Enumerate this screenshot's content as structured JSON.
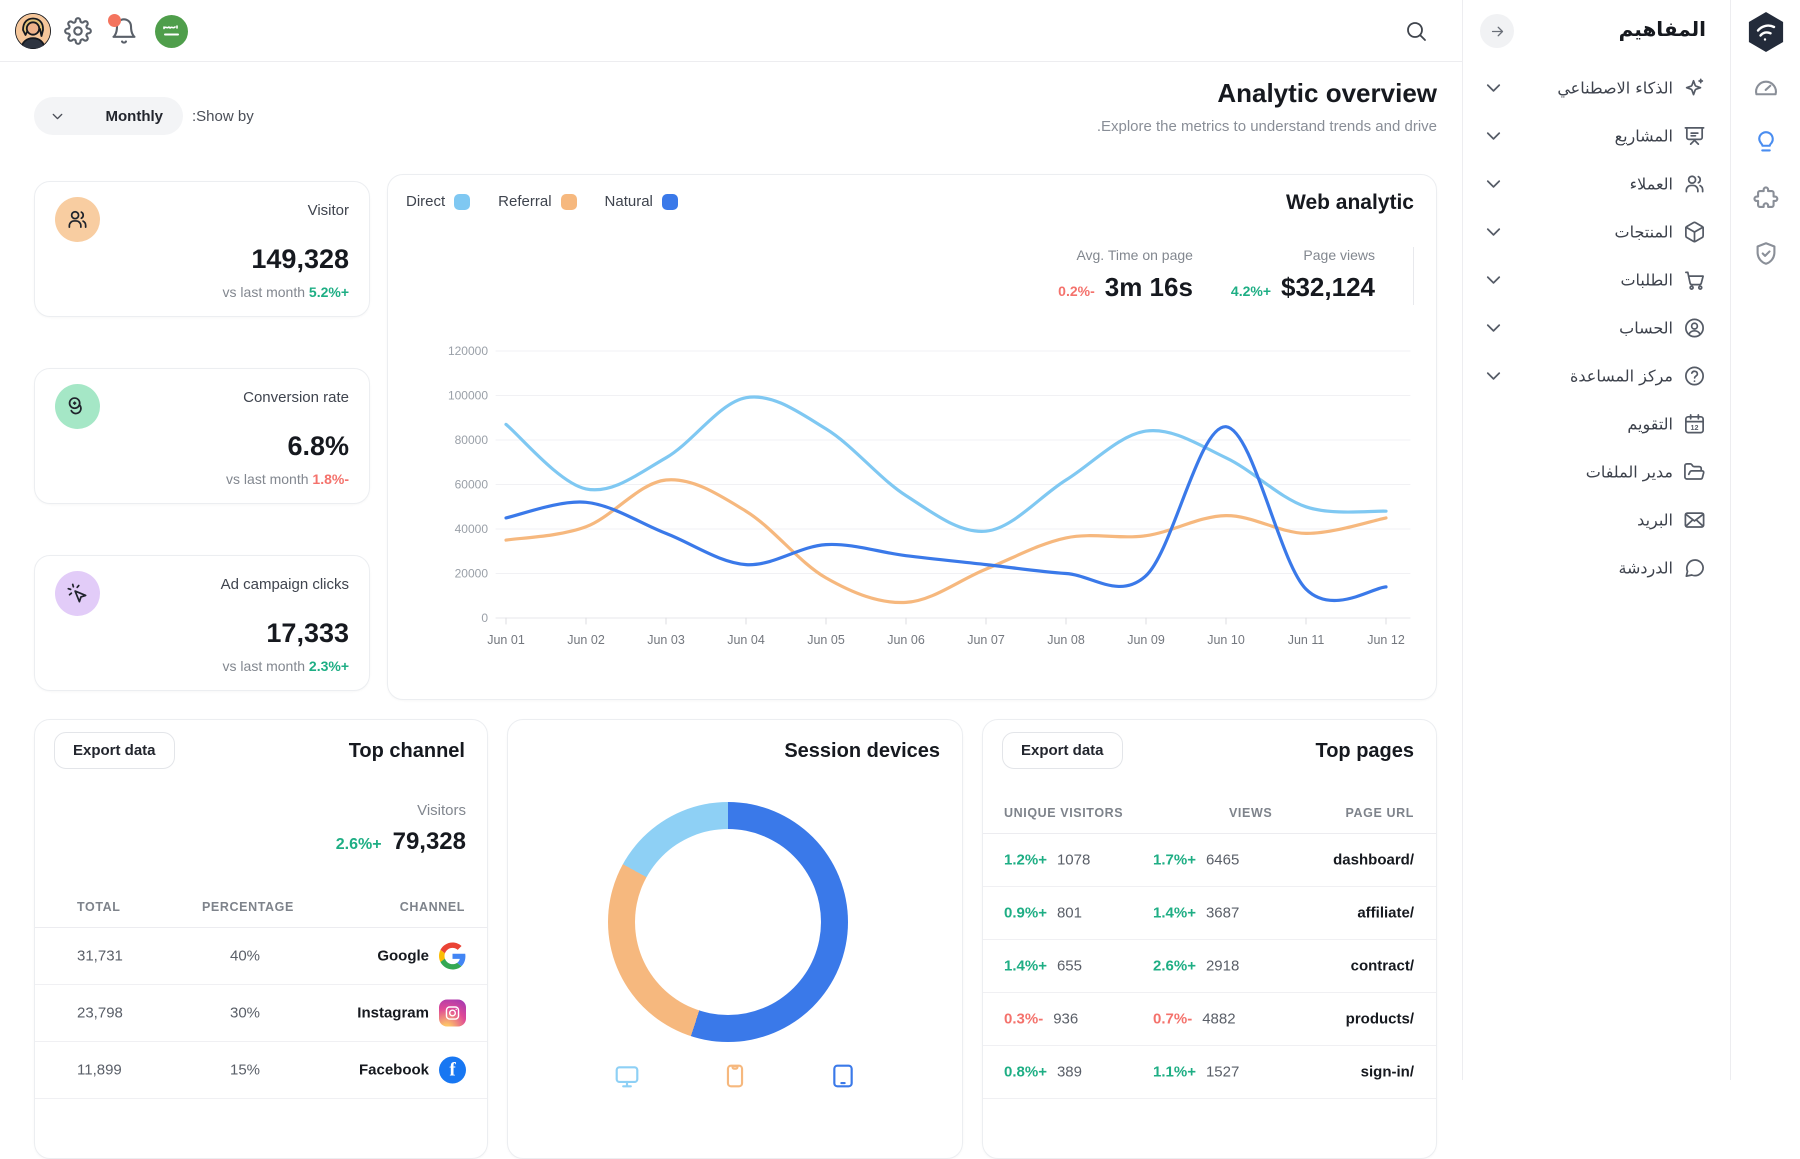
{
  "colors": {
    "direct": "#7fc8f2",
    "referral": "#f6b87e",
    "natural": "#3a79e9",
    "green": "#1eae84",
    "red": "#f4726c",
    "border": "#ececf0",
    "stat_icon_bgs": [
      "#f8cda1",
      "#a5e7c6",
      "#e2ccf8"
    ],
    "active_rail": "#4a8df0",
    "facebook": "#1877f2",
    "flag_badge": "#4f9e4b",
    "notification_dot": "#f4745e"
  },
  "page_header": {
    "title": "Analytic overview",
    "subtitle": ".Explore the metrics to understand trends and drive",
    "show_by_label": ":Show by",
    "period": "Monthly"
  },
  "stats": [
    {
      "title": "Visitor",
      "value": "149,328",
      "note": "vs last month",
      "delta": "5.2%+",
      "delta_dir": "up",
      "icon": "users",
      "icon_bg": "#f8cda1"
    },
    {
      "title": "Conversion rate",
      "value": "6.8%",
      "note": "vs last month",
      "delta": "1.8%-",
      "delta_dir": "down",
      "icon": "coins",
      "icon_bg": "#a5e7c6"
    },
    {
      "title": "Ad campaign clicks",
      "value": "17,333",
      "note": "vs last month",
      "delta": "2.3%+",
      "delta_dir": "up",
      "icon": "cursor-click",
      "icon_bg": "#e2ccf8"
    }
  ],
  "web_analytic": {
    "title": "Web analytic",
    "legend": [
      {
        "label": "Direct",
        "color": "#7fc8f2"
      },
      {
        "label": "Referral",
        "color": "#f6b87e"
      },
      {
        "label": "Natural",
        "color": "#3a79e9"
      }
    ],
    "metrics": [
      {
        "label": "Avg. Time on page",
        "value": "3m 16s",
        "delta": "0.2%-",
        "delta_dir": "down"
      },
      {
        "label": "Page views",
        "value": "$32,124",
        "delta": "4.2%+",
        "delta_dir": "up"
      }
    ]
  },
  "chart_data": [
    {
      "type": "line",
      "title": "Web analytic",
      "x": [
        "Jun 01",
        "Jun 02",
        "Jun 03",
        "Jun 04",
        "Jun 05",
        "Jun 06",
        "Jun 07",
        "Jun 08",
        "Jun 09",
        "Jun 10",
        "Jun 11",
        "Jun 12"
      ],
      "series": [
        {
          "name": "Direct",
          "color": "#7fc8f2",
          "values": [
            87000,
            58000,
            72000,
            99000,
            85000,
            55000,
            39000,
            62000,
            84000,
            72000,
            50000,
            48000
          ]
        },
        {
          "name": "Referral",
          "color": "#f6b87e",
          "values": [
            35000,
            41000,
            62000,
            48000,
            18000,
            7000,
            22000,
            36000,
            37000,
            46000,
            38000,
            45000
          ]
        },
        {
          "name": "Natural",
          "color": "#3a79e9",
          "values": [
            45000,
            52000,
            38000,
            24000,
            33000,
            28000,
            24000,
            20000,
            19000,
            86000,
            13000,
            14000
          ]
        }
      ],
      "ylim": [
        0,
        120000
      ],
      "yticks": [
        0,
        20000,
        40000,
        60000,
        80000,
        100000,
        120000
      ],
      "grid": true,
      "legend_position": "top-left"
    },
    {
      "type": "donut",
      "title": "Session devices",
      "slices": [
        {
          "color": "#3a79e9",
          "value": 55
        },
        {
          "color": "#f6b87e",
          "value": 28
        },
        {
          "color": "#8ed0f5",
          "value": 17
        }
      ]
    }
  ],
  "top_channel": {
    "title": "Top channel",
    "export_label": "Export data",
    "visitors_label": "Visitors",
    "visitors_delta": "2.6%+",
    "visitors_delta_dir": "up",
    "visitors_value": "79,328",
    "headers": [
      "TOTAL",
      "PERCENTAGE",
      "CHANNEL"
    ],
    "rows": [
      {
        "total": "31,731",
        "percentage": "40%",
        "channel": "Google",
        "icon": "google"
      },
      {
        "total": "23,798",
        "percentage": "30%",
        "channel": "Instagram",
        "icon": "instagram"
      },
      {
        "total": "11,899",
        "percentage": "15%",
        "channel": "Facebook",
        "icon": "facebook"
      }
    ]
  },
  "session_devices": {
    "title": "Session devices",
    "legend_icons": [
      {
        "icon": "monitor",
        "color": "#8ed0f5"
      },
      {
        "icon": "phone",
        "color": "#f6b87e"
      },
      {
        "icon": "tablet",
        "color": "#3a79e9"
      }
    ]
  },
  "top_pages": {
    "title": "Top pages",
    "export_label": "Export data",
    "headers": [
      "UNIQUE VISITORS",
      "VIEWS",
      "PAGE URL"
    ],
    "rows": [
      {
        "uv_delta": "1.2%+",
        "uv_dir": "up",
        "uv": "1078",
        "views_delta": "1.7%+",
        "views_dir": "up",
        "views": "6465",
        "url": "dashboard/"
      },
      {
        "uv_delta": "0.9%+",
        "uv_dir": "up",
        "uv": "801",
        "views_delta": "1.4%+",
        "views_dir": "up",
        "views": "3687",
        "url": "affiliate/"
      },
      {
        "uv_delta": "1.4%+",
        "uv_dir": "up",
        "uv": "655",
        "views_delta": "2.6%+",
        "views_dir": "up",
        "views": "2918",
        "url": "contract/"
      },
      {
        "uv_delta": "0.3%-",
        "uv_dir": "down",
        "uv": "936",
        "views_delta": "0.7%-",
        "views_dir": "down",
        "views": "4882",
        "url": "products/"
      },
      {
        "uv_delta": "0.8%+",
        "uv_dir": "up",
        "uv": "389",
        "views_delta": "1.1%+",
        "views_dir": "up",
        "views": "1527",
        "url": "sign-in/"
      }
    ]
  },
  "sidebar": {
    "title": "المفاهيم",
    "items": [
      {
        "label": "الذكاء الاصطناعي",
        "icon": "sparkles",
        "chevron": true
      },
      {
        "label": "المشاريع",
        "icon": "presentation",
        "chevron": true
      },
      {
        "label": "العملاء",
        "icon": "users2",
        "chevron": true
      },
      {
        "label": "المنتجات",
        "icon": "package",
        "chevron": true
      },
      {
        "label": "الطلبات",
        "icon": "cart",
        "chevron": true
      },
      {
        "label": "الحساب",
        "icon": "user-circle",
        "chevron": true
      },
      {
        "label": "مركز المساعدة",
        "icon": "help-circle",
        "chevron": true
      },
      {
        "label": "التقويم",
        "icon": "calendar",
        "chevron": false
      },
      {
        "label": "مدير الملفات",
        "icon": "folder",
        "chevron": false
      },
      {
        "label": "البريد",
        "icon": "mail",
        "chevron": false
      },
      {
        "label": "الدردشة",
        "icon": "chat",
        "chevron": false
      }
    ]
  },
  "rail": {
    "icons": [
      "gauge",
      "bulb",
      "puzzle",
      "shield"
    ],
    "active": "bulb"
  }
}
